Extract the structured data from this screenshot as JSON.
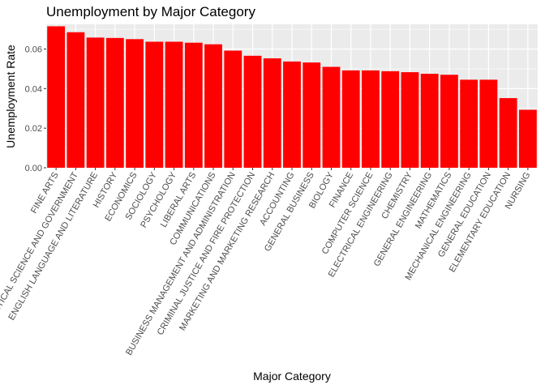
{
  "chart_data": {
    "type": "bar",
    "title": "Unemployment by Major Category",
    "xlabel": "Major Category",
    "ylabel": "Unemployment Rate",
    "ylim": [
      0,
      0.0725
    ],
    "yticks": [
      0.0,
      0.02,
      0.04,
      0.06
    ],
    "ytick_labels": [
      "0.00",
      "0.02",
      "0.04",
      "0.06"
    ],
    "grid": true,
    "bar_color": "#ff0000",
    "panel_color": "#ebebeb",
    "categories": [
      "FINE ARTS",
      "POLITICAL SCIENCE AND GOVERNMENT",
      "ENGLISH LANGUAGE AND LITERATURE",
      "HISTORY",
      "ECONOMICS",
      "SOCIOLOGY",
      "PSYCHOLOGY",
      "LIBERAL ARTS",
      "COMMUNICATIONS",
      "BUSINESS MANAGEMENT AND ADMINISTRATION",
      "CRIMINAL JUSTICE AND FIRE PROTECTION",
      "MARKETING AND MARKETING RESEARCH",
      "ACCOUNTING",
      "GENERAL BUSINESS",
      "BIOLOGY",
      "FINANCE",
      "COMPUTER SCIENCE",
      "ELECTRICAL ENGINEERING",
      "CHEMISTRY",
      "GENERAL ENGINEERING",
      "MATHEMATICS",
      "MECHANICAL ENGINEERING",
      "GENERAL EDUCATION",
      "ELEMENTARY EDUCATION",
      "NURSING"
    ],
    "values": [
      0.0715,
      0.0685,
      0.0658,
      0.0656,
      0.065,
      0.0637,
      0.0637,
      0.0632,
      0.0624,
      0.0592,
      0.0566,
      0.0553,
      0.0537,
      0.0532,
      0.051,
      0.0492,
      0.0492,
      0.0488,
      0.0483,
      0.0475,
      0.047,
      0.0445,
      0.0445,
      0.0352,
      0.0293
    ]
  }
}
